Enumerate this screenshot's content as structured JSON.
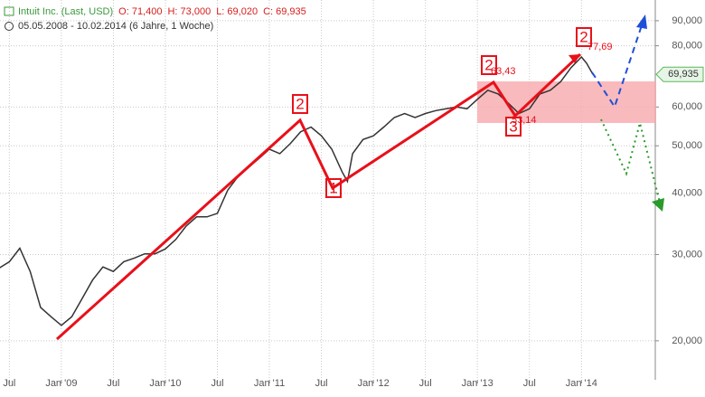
{
  "chart_data": {
    "type": "line",
    "title": "Intuit Inc. (Last, USD)",
    "quote": [
      "O: 71,400",
      "H: 73,000",
      "L: 69,020",
      "C: 69,935"
    ],
    "subtitle": "05.05.2008 - 10.02.2014 (6 Jahre, 1 Woche)",
    "log_scale": true,
    "grid": true,
    "xlim": [
      2008.41,
      2014.71
    ],
    "ylim": [
      16.65,
      99.2
    ],
    "xticks": [
      {
        "value": 2008.5,
        "label": "Jul"
      },
      {
        "value": 2009.0,
        "label": "Jan '09"
      },
      {
        "value": 2009.5,
        "label": "Jul"
      },
      {
        "value": 2010.0,
        "label": "Jan '10"
      },
      {
        "value": 2010.5,
        "label": "Jul"
      },
      {
        "value": 2011.0,
        "label": "Jan '11"
      },
      {
        "value": 2011.5,
        "label": "Jul"
      },
      {
        "value": 2012.0,
        "label": "Jan '12"
      },
      {
        "value": 2012.5,
        "label": "Jul"
      },
      {
        "value": 2013.0,
        "label": "Jan '13"
      },
      {
        "value": 2013.5,
        "label": "Jul"
      },
      {
        "value": 2014.0,
        "label": "Jan '14"
      }
    ],
    "yticks": [
      {
        "value": 20,
        "label": "20,000"
      },
      {
        "value": 30,
        "label": "30,000"
      },
      {
        "value": 40,
        "label": "40,000"
      },
      {
        "value": 50,
        "label": "50,000"
      },
      {
        "value": 60,
        "label": "60,000"
      },
      {
        "value": 80,
        "label": "80,000"
      },
      {
        "value": 90,
        "label": "90,000"
      }
    ],
    "last_price": {
      "value": 69.935,
      "label": "69,935"
    },
    "series": [
      {
        "name": "Intuit Inc.",
        "color": "#333333",
        "x": [
          2008.35,
          2008.5,
          2008.6,
          2008.7,
          2008.8,
          2008.9,
          2009.0,
          2009.1,
          2009.2,
          2009.3,
          2009.4,
          2009.5,
          2009.6,
          2009.7,
          2009.8,
          2009.9,
          2010.0,
          2010.1,
          2010.2,
          2010.3,
          2010.4,
          2010.5,
          2010.6,
          2010.7,
          2010.8,
          2010.9,
          2011.0,
          2011.1,
          2011.2,
          2011.3,
          2011.4,
          2011.5,
          2011.6,
          2011.7,
          2011.75,
          2011.8,
          2011.9,
          2012.0,
          2012.1,
          2012.2,
          2012.3,
          2012.4,
          2012.5,
          2012.6,
          2012.7,
          2012.8,
          2012.9,
          2013.0,
          2013.1,
          2013.2,
          2013.3,
          2013.4,
          2013.5,
          2013.6,
          2013.7,
          2013.8,
          2013.9,
          2014.0,
          2014.05,
          2014.11
        ],
        "values": [
          27.7,
          29.0,
          30.9,
          27.7,
          23.4,
          22.4,
          21.5,
          22.4,
          24.4,
          26.6,
          28.3,
          27.7,
          29.0,
          29.5,
          30.1,
          30.1,
          30.8,
          32.2,
          34.3,
          35.8,
          35.8,
          36.4,
          40.6,
          43.3,
          45.2,
          47.1,
          49.2,
          48.2,
          50.5,
          53.4,
          54.6,
          52.4,
          49.2,
          44.2,
          42.3,
          48.2,
          51.5,
          52.4,
          54.6,
          57.1,
          58.2,
          57.1,
          58.2,
          59.0,
          59.5,
          60.0,
          59.5,
          62.2,
          64.9,
          63.8,
          61.0,
          58.2,
          59.5,
          63.8,
          64.9,
          67.6,
          72.2,
          75.9,
          73.7,
          69.935
        ]
      }
    ],
    "wave_labels": [
      "2",
      "1",
      "2",
      "3",
      "2"
    ],
    "price_labels": [
      "63,43",
      "53,14",
      "77,69"
    ]
  }
}
